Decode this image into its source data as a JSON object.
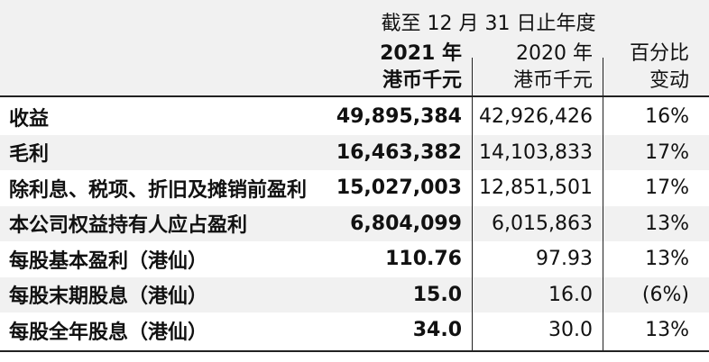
{
  "header": {
    "period": "截至 12 月 31 日止年度",
    "columns": [
      {
        "year": "2021 年",
        "unit": "港币千元"
      },
      {
        "year": "2020 年",
        "unit": "港币千元"
      },
      {
        "year": "百分比",
        "unit": "变动"
      }
    ]
  },
  "rows": [
    {
      "label": "收益",
      "v2021": "49,895,384",
      "v2020": "42,926,426",
      "change": "16%"
    },
    {
      "label": "毛利",
      "v2021": "16,463,382",
      "v2020": "14,103,833",
      "change": "17%"
    },
    {
      "label": "除利息、税项、折旧及摊销前盈利",
      "v2021": "15,027,003",
      "v2020": "12,851,501",
      "change": "17%"
    },
    {
      "label": "本公司权益持有人应占盈利",
      "v2021": "6,804,099",
      "v2020": "6,015,863",
      "change": "13%"
    },
    {
      "label": "每股基本盈利（港仙）",
      "v2021": "110.76",
      "v2020": "97.93",
      "change": "13%"
    },
    {
      "label": "每股末期股息（港仙）",
      "v2021": "15.0",
      "v2020": "16.0",
      "change": "(6%)"
    },
    {
      "label": "每股全年股息（港仙）",
      "v2021": "34.0",
      "v2020": "30.0",
      "change": "13%"
    }
  ]
}
